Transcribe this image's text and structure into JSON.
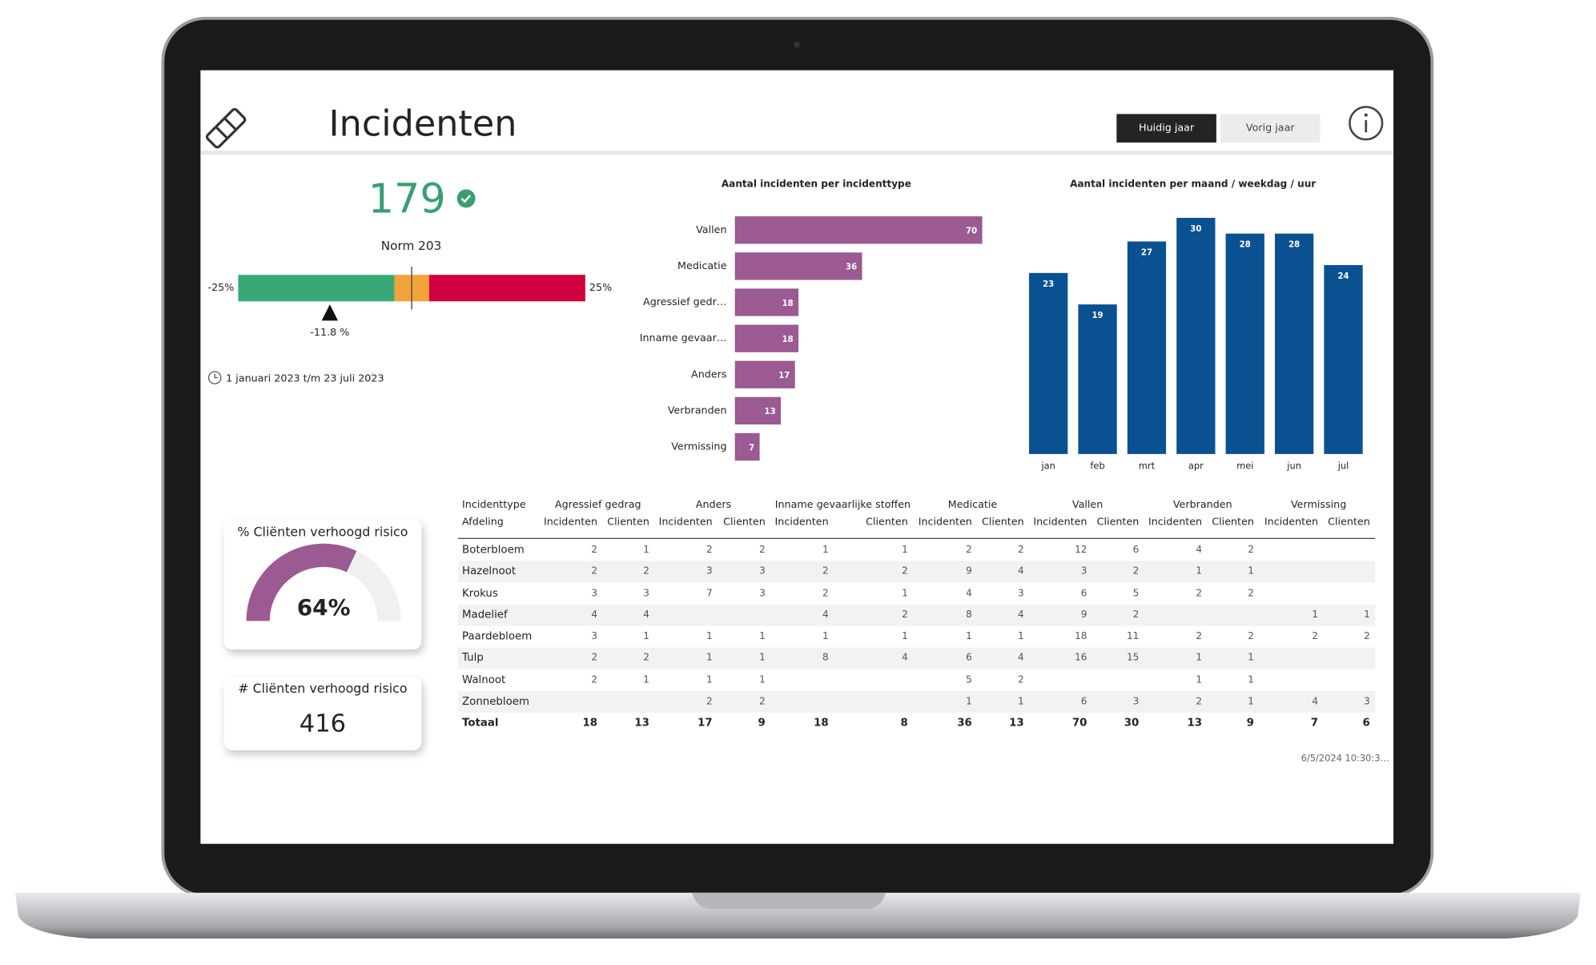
{
  "header": {
    "title": "Incidenten",
    "buttons": [
      "Huidig jaar",
      "Vorig jaar"
    ]
  },
  "kpi": {
    "value": 179,
    "color": "#3a9e72",
    "norm_label": "Norm 203",
    "scale": [
      {
        "value": -25,
        "label": "-25%"
      },
      {
        "value": 25,
        "label": "25%"
      }
    ],
    "bands": [
      {
        "to": -2.5,
        "color": "#3aa876"
      },
      {
        "to": 2.5,
        "color": "#f2a33a"
      },
      {
        "to": 25,
        "color": "#d0003e"
      }
    ],
    "norm_line": 0,
    "marker": {
      "value": -11.8,
      "label": "-11.8 %"
    },
    "date_range": "1 januari 2023 t/m 23 juli 2023"
  },
  "gauge": {
    "title": "% Cliënten verhoogd risico",
    "value": {
      "value": 64,
      "label": "64%"
    },
    "max": 100,
    "color": "#9b5a91",
    "track_color": "#f0f0f0"
  },
  "card": {
    "title": "# Cliënten verhoogd risico",
    "value": 416
  },
  "chart_data": [
    {
      "type": "bar",
      "orientation": "horizontal",
      "title": "Aantal incidenten per incidenttype",
      "color": "#9b5a91",
      "categories": [
        "Vallen",
        "Medicatie",
        "Agressief gedr…",
        "Inname gevaar…",
        "Anders",
        "Verbranden",
        "Vermissing"
      ],
      "values": [
        70,
        36,
        18,
        18,
        17,
        13,
        7
      ]
    },
    {
      "type": "bar",
      "orientation": "vertical",
      "title": "Aantal incidenten per maand / weekdag / uur",
      "color": "#0a5192",
      "categories": [
        "jan",
        "feb",
        "mrt",
        "apr",
        "mei",
        "jun",
        "jul"
      ],
      "values": [
        23,
        19,
        27,
        30,
        28,
        28,
        24
      ]
    }
  ],
  "table": {
    "row_header": [
      "Incidenttype",
      "Afdeling"
    ],
    "groups": [
      {
        "name": "Agressief gedrag",
        "columns": [
          "Incidenten",
          "Clienten"
        ]
      },
      {
        "name": "Anders",
        "columns": [
          "Incidenten",
          "Clienten"
        ]
      },
      {
        "name": "Inname gevaarlijke stoffen",
        "columns": [
          "Incidenten",
          "Clienten"
        ]
      },
      {
        "name": "Medicatie",
        "columns": [
          "Incidenten",
          "Clienten"
        ]
      },
      {
        "name": "Vallen",
        "columns": [
          "Incidenten",
          "Clienten"
        ]
      },
      {
        "name": "Verbranden",
        "columns": [
          "Incidenten",
          "Clienten"
        ]
      },
      {
        "name": "Vermissing",
        "columns": [
          "Incidenten",
          "Clienten"
        ]
      }
    ],
    "rows": [
      {
        "label": "Boterbloem",
        "cells": [
          2,
          1,
          2,
          2,
          1,
          1,
          2,
          2,
          12,
          6,
          4,
          2,
          null,
          null
        ]
      },
      {
        "label": "Hazelnoot",
        "cells": [
          2,
          2,
          3,
          3,
          2,
          2,
          9,
          4,
          3,
          2,
          1,
          1,
          null,
          null
        ]
      },
      {
        "label": "Krokus",
        "cells": [
          3,
          3,
          7,
          3,
          2,
          1,
          4,
          3,
          6,
          5,
          2,
          2,
          null,
          null
        ]
      },
      {
        "label": "Madelief",
        "cells": [
          4,
          4,
          null,
          null,
          4,
          2,
          8,
          4,
          9,
          2,
          null,
          null,
          1,
          1
        ]
      },
      {
        "label": "Paardebloem",
        "cells": [
          3,
          1,
          1,
          1,
          1,
          1,
          1,
          1,
          18,
          11,
          2,
          2,
          2,
          2
        ]
      },
      {
        "label": "Tulp",
        "cells": [
          2,
          2,
          1,
          1,
          8,
          4,
          6,
          4,
          16,
          15,
          1,
          1,
          null,
          null
        ]
      },
      {
        "label": "Walnoot",
        "cells": [
          2,
          1,
          1,
          1,
          null,
          null,
          5,
          2,
          null,
          null,
          1,
          1,
          null,
          null
        ]
      },
      {
        "label": "Zonnebloem",
        "cells": [
          null,
          null,
          2,
          2,
          null,
          null,
          1,
          1,
          6,
          3,
          2,
          1,
          4,
          3
        ]
      }
    ],
    "total": {
      "label": "Totaal",
      "cells": [
        18,
        13,
        17,
        9,
        18,
        8,
        36,
        13,
        70,
        30,
        13,
        9,
        7,
        6
      ]
    }
  },
  "timestamp": "6/5/2024 10:30:3…"
}
